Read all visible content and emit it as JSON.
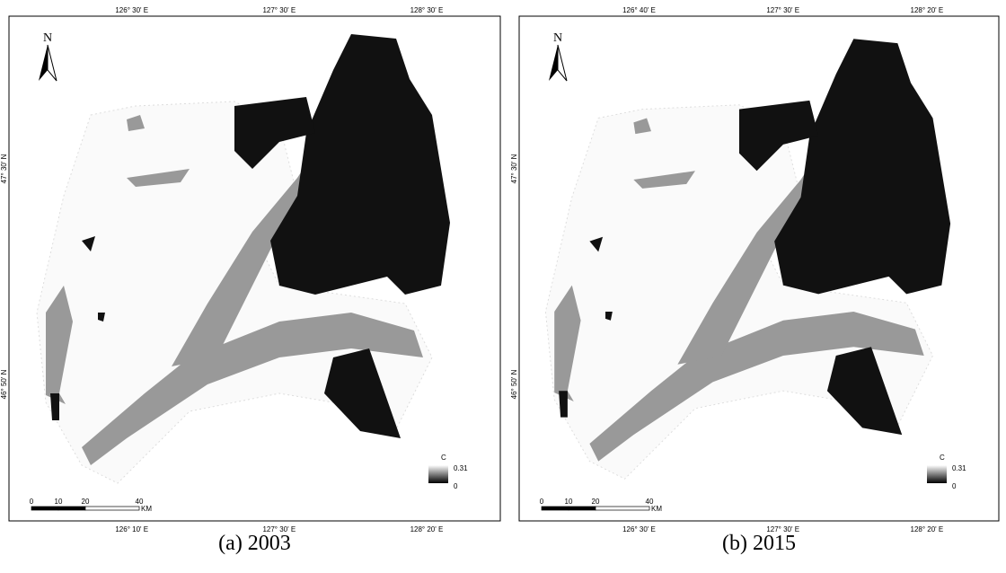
{
  "panels": [
    {
      "caption": "(a) 2003",
      "top_labels": [
        "126° 30' E",
        "127° 30' E",
        "128° 30' E"
      ],
      "bottom_labels": [
        "126° 10' E",
        "127° 30' E",
        "128° 20' E"
      ],
      "left_labels": [
        "47° 30' N",
        "46° 50' N"
      ],
      "north": "N",
      "legend": {
        "title": "C",
        "max": 0.31,
        "min": 0
      },
      "scale": {
        "ticks": [
          0,
          10,
          20,
          40
        ],
        "unit": "KM"
      }
    },
    {
      "caption": "(b) 2015",
      "top_labels": [
        "126° 40' E",
        "127° 30' E",
        "128° 20' E"
      ],
      "bottom_labels": [
        "126° 30' E",
        "127° 30' E",
        "128° 20' E"
      ],
      "left_labels": [
        "47° 30' N",
        "46° 50' N"
      ],
      "north": "N",
      "legend": {
        "title": "C",
        "max": 0.31,
        "min": 0
      },
      "scale": {
        "ticks": [
          0,
          10,
          20,
          40
        ],
        "unit": "KM"
      }
    }
  ]
}
